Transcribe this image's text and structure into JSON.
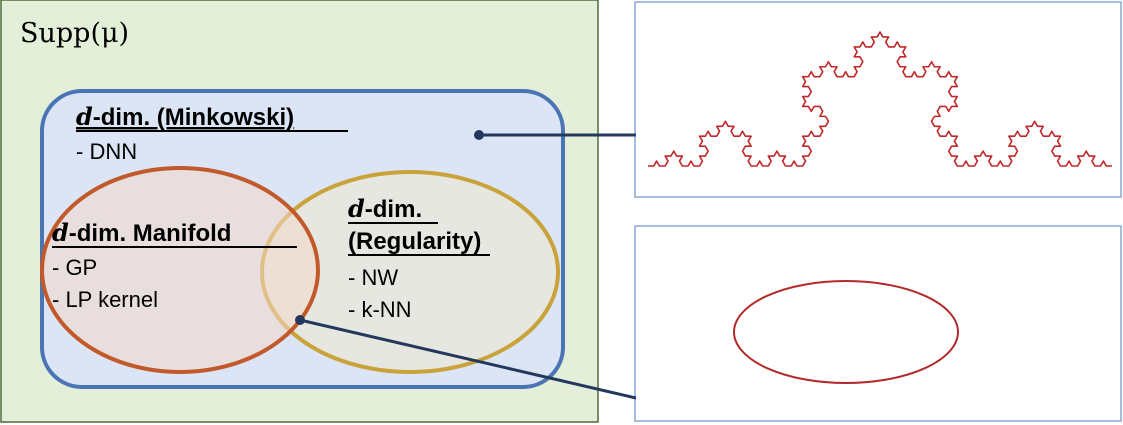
{
  "outer_region": {
    "label": "Supp(μ)",
    "fill": "#e4efd9",
    "stroke": "#4e6b3a"
  },
  "minkowski_region": {
    "title_var": "d",
    "title_rest": "-dim. (Minkowski)",
    "items": [
      "-  DNN"
    ],
    "fill": "#dbe5f5",
    "stroke": "#4a74b4"
  },
  "manifold_region": {
    "title_var": "d",
    "title_rest": "-dim. Manifold",
    "items": [
      "- GP",
      "- LP kernel"
    ],
    "stroke": "#c2592a"
  },
  "regularity_region": {
    "title_var": "d",
    "title_line1_rest": "-dim.",
    "title_line2": "(Regularity)",
    "items": [
      "- NW",
      "- k-NN"
    ],
    "stroke": "#c9a23a"
  },
  "examples": {
    "top_panel": {
      "content": "koch-curve",
      "color": "#c0282a"
    },
    "bottom_panel": {
      "content": "ellipse",
      "color": "#b22a2a"
    },
    "panel_border": "#8aa6d6",
    "connector_color": "#24385e"
  }
}
